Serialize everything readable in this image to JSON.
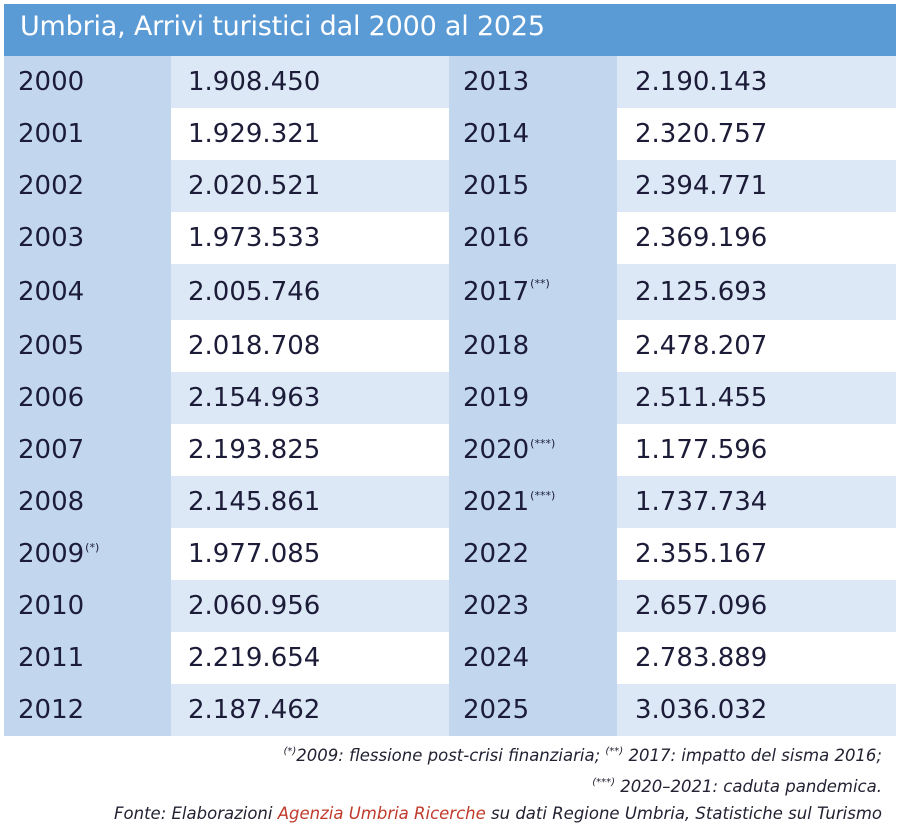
{
  "title": "Umbria, Arrivi turistici dal 2000 al 2025",
  "rows": [
    {
      "left_year": "2000",
      "left_mark": "",
      "left_value": "1.908.450",
      "right_year": "2013",
      "right_mark": "",
      "right_value": "2.190.143"
    },
    {
      "left_year": "2001",
      "left_mark": "",
      "left_value": "1.929.321",
      "right_year": "2014",
      "right_mark": "",
      "right_value": "2.320.757"
    },
    {
      "left_year": "2002",
      "left_mark": "",
      "left_value": "2.020.521",
      "right_year": "2015",
      "right_mark": "",
      "right_value": "2.394.771"
    },
    {
      "left_year": "2003",
      "left_mark": "",
      "left_value": "1.973.533",
      "right_year": "2016",
      "right_mark": "",
      "right_value": "2.369.196"
    },
    {
      "left_year": "2004",
      "left_mark": "",
      "left_value": "2.005.746",
      "right_year": "2017",
      "right_mark": "(**)",
      "right_value": "2.125.693"
    },
    {
      "left_year": "2005",
      "left_mark": "",
      "left_value": "2.018.708",
      "right_year": "2018",
      "right_mark": "",
      "right_value": "2.478.207"
    },
    {
      "left_year": "2006",
      "left_mark": "",
      "left_value": "2.154.963",
      "right_year": "2019",
      "right_mark": "",
      "right_value": "2.511.455"
    },
    {
      "left_year": "2007",
      "left_mark": "",
      "left_value": "2.193.825",
      "right_year": "2020",
      "right_mark": "(***)",
      "right_value": "1.177.596"
    },
    {
      "left_year": "2008",
      "left_mark": "",
      "left_value": "2.145.861",
      "right_year": "2021",
      "right_mark": "(***)",
      "right_value": "1.737.734"
    },
    {
      "left_year": "2009",
      "left_mark": "(*)",
      "left_value": "1.977.085",
      "right_year": "2022",
      "right_mark": "",
      "right_value": "2.355.167"
    },
    {
      "left_year": "2010",
      "left_mark": "",
      "left_value": "2.060.956",
      "right_year": "2023",
      "right_mark": "",
      "right_value": "2.657.096"
    },
    {
      "left_year": "2011",
      "left_mark": "",
      "left_value": "2.219.654",
      "right_year": "2024",
      "right_mark": "",
      "right_value": "2.783.889"
    },
    {
      "left_year": "2012",
      "left_mark": "",
      "left_value": "2.187.462",
      "right_year": "2025",
      "right_mark": "",
      "right_value": "3.036.032"
    }
  ],
  "notes": {
    "line1": {
      "mark1": "(*)",
      "text1": "2009: flessione post-crisi finanziaria; ",
      "mark2": "(**)",
      "text2": " 2017: impatto del sisma 2016;"
    },
    "line2": {
      "mark": "(***)",
      "text": " 2020–2021: caduta pandemica."
    },
    "line3": {
      "prefix": "Fonte: Elaborazioni ",
      "agency": "Agenzia Umbria Ricerche",
      "suffix": " su dati Regione Umbria, Statistiche sul Turismo"
    }
  },
  "colors": {
    "header": "#5b9bd5",
    "year_column": "#c2d7ee",
    "row_band": "#dce8f6",
    "agency_text": "#c0392b"
  }
}
